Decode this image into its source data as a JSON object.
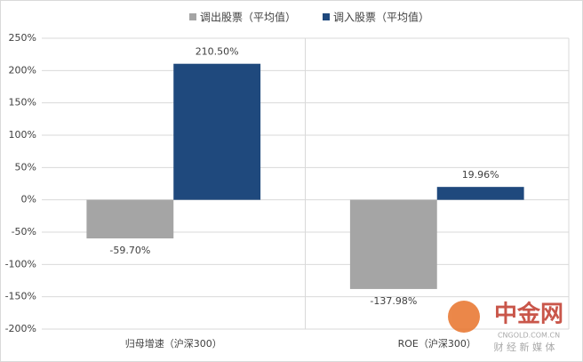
{
  "chart_data": {
    "type": "bar",
    "categories": [
      "归母增速（沪深300）",
      "ROE（沪深300）"
    ],
    "series": [
      {
        "name": "调出股票（平均值）",
        "color": "#a5a5a5",
        "values": [
          -59.7,
          -137.98
        ],
        "value_labels": [
          "-59.70%",
          "-137.98%"
        ]
      },
      {
        "name": "调入股票（平均值）",
        "color": "#1f497d",
        "values": [
          210.5,
          19.96
        ],
        "value_labels": [
          "210.50%",
          "19.96%"
        ]
      }
    ],
    "ylim": [
      -200,
      250
    ],
    "yticks": [
      {
        "value": -200,
        "label": "-200%"
      },
      {
        "value": -150,
        "label": "-150%"
      },
      {
        "value": -100,
        "label": "-100%"
      },
      {
        "value": -50,
        "label": "-50%"
      },
      {
        "value": 0,
        "label": "0%"
      },
      {
        "value": 50,
        "label": "50%"
      },
      {
        "value": 100,
        "label": "100%"
      },
      {
        "value": 150,
        "label": "150%"
      },
      {
        "value": 200,
        "label": "200%"
      },
      {
        "value": 250,
        "label": "250%"
      }
    ],
    "grid": true,
    "legend": "top"
  },
  "watermark": {
    "brand": "中金网",
    "site": "CNGOLD.COM.CN",
    "tagline": "财 经 新 媒 体"
  }
}
